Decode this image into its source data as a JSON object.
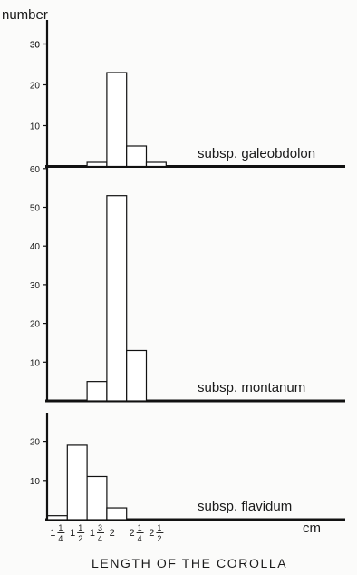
{
  "chart_data": {
    "type": "bar",
    "ylabel": "number",
    "xlabel": "LENGTH OF THE COROLLA",
    "x_unit": "cm",
    "x_tick_labels": [
      {
        "whole": "1",
        "num": "1",
        "den": "4"
      },
      {
        "whole": "1",
        "num": "1",
        "den": "2"
      },
      {
        "whole": "1",
        "num": "3",
        "den": "4"
      },
      {
        "whole": "2",
        "num": "",
        "den": ""
      },
      {
        "whole": "2",
        "num": "1",
        "den": "4"
      },
      {
        "whole": "2",
        "num": "1",
        "den": "2"
      }
    ],
    "bin_edges_cm": [
      1.125,
      1.375,
      1.625,
      1.875,
      2.125,
      2.375,
      2.625
    ],
    "panels": [
      {
        "name": "subsp. galeobdolon",
        "ylim": [
          0,
          30
        ],
        "yticks": [
          10,
          20,
          30
        ],
        "top_label": "30",
        "values": [
          0,
          0,
          1,
          23,
          5,
          1
        ]
      },
      {
        "name": "subsp. montanum",
        "ylim": [
          0,
          60
        ],
        "yticks": [
          10,
          20,
          30,
          40,
          50
        ],
        "top_label": "60",
        "values": [
          0,
          0,
          5,
          53,
          13,
          0
        ]
      },
      {
        "name": "subsp. flavidum",
        "ylim": [
          0,
          30
        ],
        "yticks": [
          10,
          20
        ],
        "top_label": "",
        "values": [
          1,
          19,
          11,
          3,
          0,
          0
        ]
      }
    ]
  }
}
